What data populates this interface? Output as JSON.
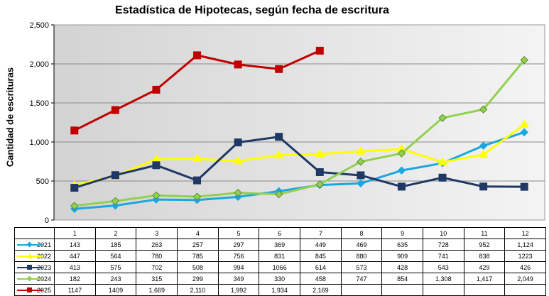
{
  "chart_data": {
    "type": "line",
    "title": "Estadística de Hipotecas, según fecha de escritura",
    "xlabel": "",
    "ylabel": "Cantidad de escrituras",
    "categories": [
      "1",
      "2",
      "3",
      "4",
      "5",
      "6",
      "7",
      "8",
      "9",
      "10",
      "11",
      "12"
    ],
    "ylim": [
      0,
      2500
    ],
    "yticks": [
      "0",
      "500",
      "1,000",
      "1,500",
      "2,000",
      "2,500"
    ],
    "grid": true,
    "legend_placement": "data-table-left",
    "series": [
      {
        "name": "2021",
        "color": "#1aa7e0",
        "marker": "diamond",
        "values": [
          143,
          185,
          263,
          257,
          297,
          369,
          449,
          469,
          635,
          728,
          952,
          1124
        ],
        "labels": [
          "143",
          "185",
          "263",
          "257",
          "297",
          "369",
          "449",
          "469",
          "635",
          "728",
          "952",
          "1,124"
        ]
      },
      {
        "name": "2022",
        "color": "#ffff00",
        "marker": "triangle",
        "values": [
          447,
          564,
          780,
          785,
          756,
          831,
          845,
          880,
          909,
          741,
          838,
          1223
        ],
        "labels": [
          "447",
          "564",
          "780",
          "785",
          "756",
          "831",
          "845",
          "880",
          "909",
          "741",
          "838",
          "1223"
        ]
      },
      {
        "name": "2023",
        "color": "#1f3864",
        "marker": "square",
        "values": [
          413,
          575,
          702,
          508,
          994,
          1066,
          614,
          573,
          428,
          543,
          429,
          426
        ],
        "labels": [
          "413",
          "575",
          "702",
          "508",
          "994",
          "1066",
          "614",
          "573",
          "428",
          "543",
          "429",
          "426"
        ]
      },
      {
        "name": "2024",
        "color": "#92d050",
        "marker": "diamond",
        "values": [
          182,
          243,
          315,
          299,
          349,
          330,
          458,
          747,
          854,
          1308,
          1417,
          2049
        ],
        "labels": [
          "182",
          "243",
          "315",
          "299",
          "349",
          "330",
          "458",
          "747",
          "854",
          "1,308",
          "1,417",
          "2,049"
        ]
      },
      {
        "name": "2025",
        "color": "#c00000",
        "marker": "square",
        "values": [
          1147,
          1409,
          1669,
          2110,
          1992,
          1934,
          2169,
          null,
          null,
          null,
          null,
          null
        ],
        "labels": [
          "1147",
          "1409",
          "1,669",
          "2,110",
          "1,992",
          "1,934",
          "2,169",
          "",
          "",
          "",
          "",
          ""
        ]
      }
    ]
  }
}
